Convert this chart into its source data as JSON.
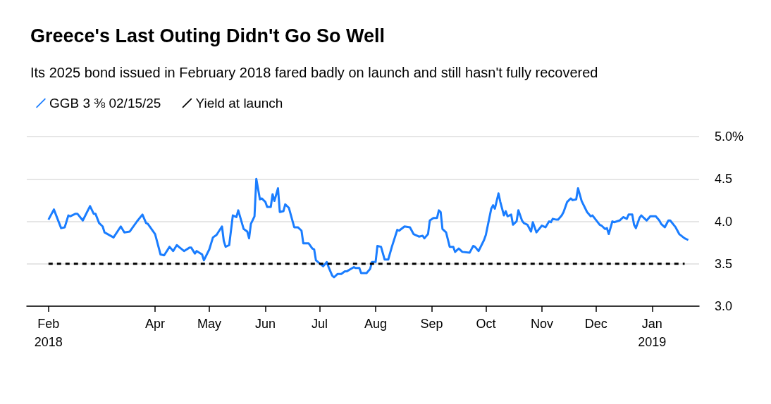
{
  "chart_data": {
    "type": "line",
    "title": "Greece's Last Outing Didn't Go So Well",
    "subtitle": "Its 2025 bond issued in February 2018 fared badly on launch and still hasn't fully recovered",
    "legend": "top left",
    "grid": "y",
    "marker": "none",
    "line_style": "solid",
    "xlim": [
      "2018-01-20",
      "2019-01-27"
    ],
    "xticks": [
      {
        "value": "2018-02-01",
        "label": "Feb\n2018"
      },
      {
        "value": "2018-04-01",
        "label": "Apr"
      },
      {
        "value": "2018-05-01",
        "label": "May"
      },
      {
        "value": "2018-06-01",
        "label": "Jun"
      },
      {
        "value": "2018-07-01",
        "label": "Jul"
      },
      {
        "value": "2018-08-01",
        "label": "Aug"
      },
      {
        "value": "2018-09-01",
        "label": "Sep"
      },
      {
        "value": "2018-10-01",
        "label": "Oct"
      },
      {
        "value": "2018-11-01",
        "label": "Nov"
      },
      {
        "value": "2018-12-01",
        "label": "Dec"
      },
      {
        "value": "2019-01-01",
        "label": "Jan\n2019"
      }
    ],
    "ylim": [
      3,
      5
    ],
    "yticks": [
      {
        "value": 3,
        "label": "3.0"
      },
      {
        "value": 3.5,
        "label": "3.5"
      },
      {
        "value": 4,
        "label": "4.0"
      },
      {
        "value": 4.5,
        "label": "4.5"
      },
      {
        "value": 5,
        "label": "5.0%"
      }
    ],
    "series": [
      {
        "name": "GGB 3 ⅜ 02/15/25",
        "color": "#1a7dff",
        "x": [
          "2018-02-01",
          "2018-02-04",
          "2018-02-08",
          "2018-02-10",
          "2018-02-12",
          "2018-02-13",
          "2018-02-16",
          "2018-02-17",
          "2018-02-20",
          "2018-02-24",
          "2018-02-26",
          "2018-02-27",
          "2018-03-01",
          "2018-03-03",
          "2018-03-04",
          "2018-03-09",
          "2018-03-13",
          "2018-03-15",
          "2018-03-18",
          "2018-03-22",
          "2018-03-25",
          "2018-03-27",
          "2018-03-28",
          "2018-04-01",
          "2018-04-04",
          "2018-04-06",
          "2018-04-09",
          "2018-04-11",
          "2018-04-13",
          "2018-04-17",
          "2018-04-20",
          "2018-04-21",
          "2018-04-23",
          "2018-04-24",
          "2018-04-27",
          "2018-04-28",
          "2018-05-01",
          "2018-05-03",
          "2018-05-05",
          "2018-05-08",
          "2018-05-09",
          "2018-05-10",
          "2018-05-12",
          "2018-05-14",
          "2018-05-16",
          "2018-05-17",
          "2018-05-20",
          "2018-05-22",
          "2018-05-23",
          "2018-05-24",
          "2018-05-26",
          "2018-05-27",
          "2018-05-29",
          "2018-05-30",
          "2018-06-01",
          "2018-06-02",
          "2018-06-04",
          "2018-06-05",
          "2018-06-06",
          "2018-06-08",
          "2018-06-09",
          "2018-06-11",
          "2018-06-12",
          "2018-06-14",
          "2018-06-17",
          "2018-06-19",
          "2018-06-21",
          "2018-06-22",
          "2018-06-25",
          "2018-06-27",
          "2018-06-28",
          "2018-06-29",
          "2018-07-03",
          "2018-07-05",
          "2018-07-06",
          "2018-07-08",
          "2018-07-09",
          "2018-07-11",
          "2018-07-13",
          "2018-07-15",
          "2018-07-16",
          "2018-07-20",
          "2018-07-21",
          "2018-07-23",
          "2018-07-24",
          "2018-07-27",
          "2018-07-29",
          "2018-07-30",
          "2018-08-01",
          "2018-08-02",
          "2018-08-04",
          "2018-08-06",
          "2018-08-08",
          "2018-08-10",
          "2018-08-13",
          "2018-08-14",
          "2018-08-17",
          "2018-08-20",
          "2018-08-22",
          "2018-08-25",
          "2018-08-27",
          "2018-08-28",
          "2018-08-30",
          "2018-08-31",
          "2018-09-02",
          "2018-09-04",
          "2018-09-05",
          "2018-09-06",
          "2018-09-07",
          "2018-09-09",
          "2018-09-11",
          "2018-09-13",
          "2018-09-14",
          "2018-09-16",
          "2018-09-18",
          "2018-09-22",
          "2018-09-24",
          "2018-09-25",
          "2018-09-27",
          "2018-09-30",
          "2018-10-01",
          "2018-10-04",
          "2018-10-05",
          "2018-10-06",
          "2018-10-08",
          "2018-10-09",
          "2018-10-11",
          "2018-10-12",
          "2018-10-13",
          "2018-10-15",
          "2018-10-16",
          "2018-10-18",
          "2018-10-19",
          "2018-10-21",
          "2018-10-22",
          "2018-10-24",
          "2018-10-26",
          "2018-10-27",
          "2018-10-29",
          "2018-11-01",
          "2018-11-03",
          "2018-11-05",
          "2018-11-06",
          "2018-11-07",
          "2018-11-09",
          "2018-11-10",
          "2018-11-12",
          "2018-11-13",
          "2018-11-15",
          "2018-11-17",
          "2018-11-18",
          "2018-11-20",
          "2018-11-21",
          "2018-11-23",
          "2018-11-26",
          "2018-11-28",
          "2018-11-29",
          "2018-12-03",
          "2018-12-04",
          "2018-12-06",
          "2018-12-07",
          "2018-12-08",
          "2018-12-10",
          "2018-12-11",
          "2018-12-14",
          "2018-12-16",
          "2018-12-18",
          "2018-12-19",
          "2018-12-21",
          "2018-12-22",
          "2018-12-23",
          "2018-12-25",
          "2018-12-26",
          "2018-12-29",
          "2018-12-31",
          "2019-01-03",
          "2019-01-05",
          "2019-01-06",
          "2019-01-08",
          "2019-01-10",
          "2019-01-11",
          "2019-01-14",
          "2019-01-16",
          "2019-01-19",
          "2019-01-21"
        ],
        "values": [
          4.02,
          4.14,
          3.92,
          3.93,
          4.07,
          4.06,
          4.09,
          4.09,
          4.01,
          4.18,
          4.09,
          4.09,
          3.98,
          3.94,
          3.87,
          3.81,
          3.94,
          3.87,
          3.88,
          4.0,
          4.08,
          3.98,
          3.97,
          3.85,
          3.61,
          3.6,
          3.7,
          3.65,
          3.72,
          3.65,
          3.69,
          3.69,
          3.62,
          3.65,
          3.61,
          3.54,
          3.67,
          3.81,
          3.84,
          3.94,
          3.77,
          3.7,
          3.72,
          4.07,
          4.05,
          4.13,
          3.91,
          3.88,
          3.8,
          3.97,
          4.06,
          4.5,
          4.26,
          4.27,
          4.23,
          4.17,
          4.17,
          4.32,
          4.24,
          4.39,
          4.11,
          4.12,
          4.2,
          4.16,
          3.93,
          3.93,
          3.89,
          3.74,
          3.74,
          3.68,
          3.67,
          3.54,
          3.47,
          3.52,
          3.46,
          3.36,
          3.34,
          3.38,
          3.38,
          3.41,
          3.41,
          3.46,
          3.45,
          3.45,
          3.39,
          3.39,
          3.44,
          3.52,
          3.52,
          3.71,
          3.7,
          3.55,
          3.55,
          3.7,
          3.9,
          3.89,
          3.94,
          3.93,
          3.85,
          3.82,
          3.83,
          3.8,
          3.85,
          4.01,
          4.04,
          4.04,
          4.13,
          4.11,
          3.91,
          3.87,
          3.7,
          3.7,
          3.64,
          3.68,
          3.64,
          3.63,
          3.71,
          3.7,
          3.65,
          3.78,
          3.84,
          4.15,
          4.19,
          4.15,
          4.33,
          4.23,
          4.07,
          4.12,
          4.06,
          4.08,
          3.96,
          4.0,
          4.13,
          4.01,
          3.98,
          3.96,
          3.88,
          3.99,
          3.87,
          3.95,
          3.93,
          4.0,
          3.99,
          4.03,
          4.02,
          4.02,
          4.07,
          4.11,
          4.23,
          4.27,
          4.25,
          4.26,
          4.39,
          4.24,
          4.11,
          4.06,
          4.07,
          3.96,
          3.95,
          3.91,
          3.92,
          3.85,
          4.0,
          3.99,
          4.01,
          4.05,
          4.03,
          4.08,
          4.08,
          3.96,
          3.92,
          4.04,
          4.07,
          4.01,
          4.06,
          4.06,
          4.01,
          3.97,
          3.93,
          4.01,
          4.01,
          3.93,
          3.85,
          3.8,
          3.78
        ]
      },
      {
        "name": "Yield at launch",
        "color": "#000000",
        "line_style": "dashed",
        "x": [
          "2018-02-01",
          "2019-01-19"
        ],
        "values": [
          3.5,
          3.5
        ]
      }
    ]
  }
}
